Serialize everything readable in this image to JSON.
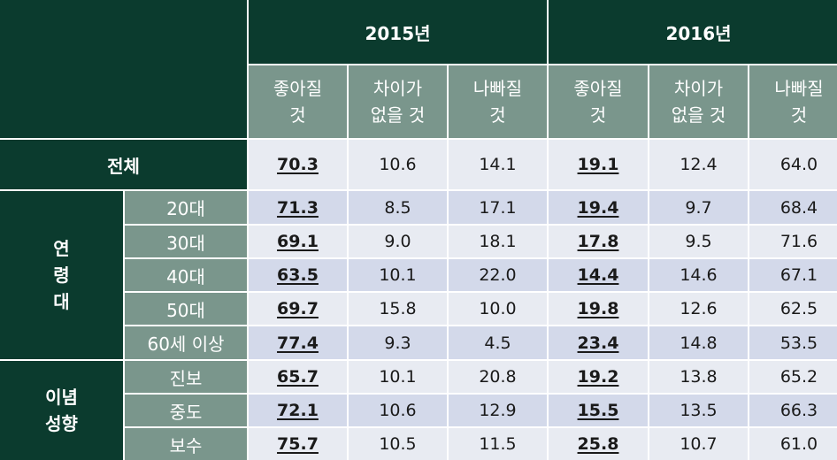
{
  "years": [
    "2015년",
    "2016년"
  ],
  "subheaders": [
    "좋아질\n것",
    "차이가\n없을 것",
    "나빠질\n것",
    "좋아질\n것",
    "차이가\n없을 것",
    "나빠질\n것"
  ],
  "total": {
    "label": "전체",
    "values": [
      "70.3",
      "10.6",
      "14.1",
      "19.1",
      "12.4",
      "64.0"
    ]
  },
  "groups": [
    {
      "label": "연\n령\n대",
      "rows": [
        {
          "label": "20대",
          "values": [
            "71.3",
            "8.5",
            "17.1",
            "19.4",
            "9.7",
            "68.4"
          ]
        },
        {
          "label": "30대",
          "values": [
            "69.1",
            "9.0",
            "18.1",
            "17.8",
            "9.5",
            "71.6"
          ]
        },
        {
          "label": "40대",
          "values": [
            "63.5",
            "10.1",
            "22.0",
            "14.4",
            "14.6",
            "67.1"
          ]
        },
        {
          "label": "50대",
          "values": [
            "69.7",
            "15.8",
            "10.0",
            "19.8",
            "12.6",
            "62.5"
          ]
        },
        {
          "label": "60세 이상",
          "values": [
            "77.4",
            "9.3",
            "4.5",
            "23.4",
            "14.8",
            "53.5"
          ]
        }
      ]
    },
    {
      "label": "이념\n성향",
      "rows": [
        {
          "label": "진보",
          "values": [
            "65.7",
            "10.1",
            "20.8",
            "19.2",
            "13.8",
            "65.2"
          ]
        },
        {
          "label": "중도",
          "values": [
            "72.1",
            "10.6",
            "12.9",
            "15.5",
            "13.5",
            "66.3"
          ]
        },
        {
          "label": "보수",
          "values": [
            "75.7",
            "10.5",
            "11.5",
            "25.8",
            "10.7",
            "61.0"
          ]
        }
      ]
    }
  ]
}
